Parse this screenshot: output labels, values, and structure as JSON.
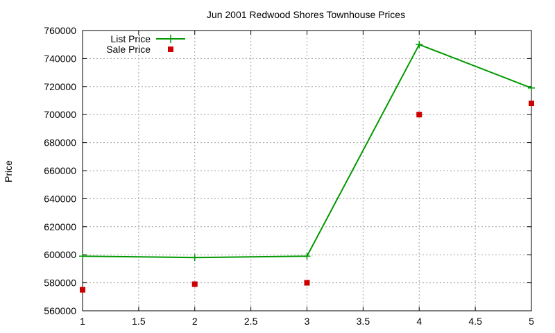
{
  "chart_data": {
    "type": "line",
    "title": "Jun 2001 Redwood Shores Townhouse Prices",
    "xlabel": "",
    "ylabel": "Price",
    "xlim": [
      1,
      5
    ],
    "ylim": [
      560000,
      760000
    ],
    "xticks": [
      1,
      1.5,
      2,
      2.5,
      3,
      3.5,
      4,
      4.5,
      5
    ],
    "xtick_labels": [
      "1",
      "1.5",
      "2",
      "2.5",
      "3",
      "3.5",
      "4",
      "4.5",
      "5"
    ],
    "yticks": [
      560000,
      580000,
      600000,
      620000,
      640000,
      660000,
      680000,
      700000,
      720000,
      740000,
      760000
    ],
    "ytick_labels": [
      "560000",
      "580000",
      "600000",
      "620000",
      "640000",
      "660000",
      "680000",
      "700000",
      "720000",
      "740000",
      "760000"
    ],
    "grid": true,
    "legend_position": "top-left",
    "x": [
      1,
      2,
      3,
      4,
      5
    ],
    "series": [
      {
        "name": "List Price",
        "style": "line-points",
        "color": "#009900",
        "values": [
          599000,
          598000,
          599000,
          750000,
          719000
        ]
      },
      {
        "name": "Sale Price",
        "style": "points",
        "color": "#cc0000",
        "values": [
          575000,
          579000,
          580000,
          700000,
          708000
        ]
      }
    ]
  }
}
